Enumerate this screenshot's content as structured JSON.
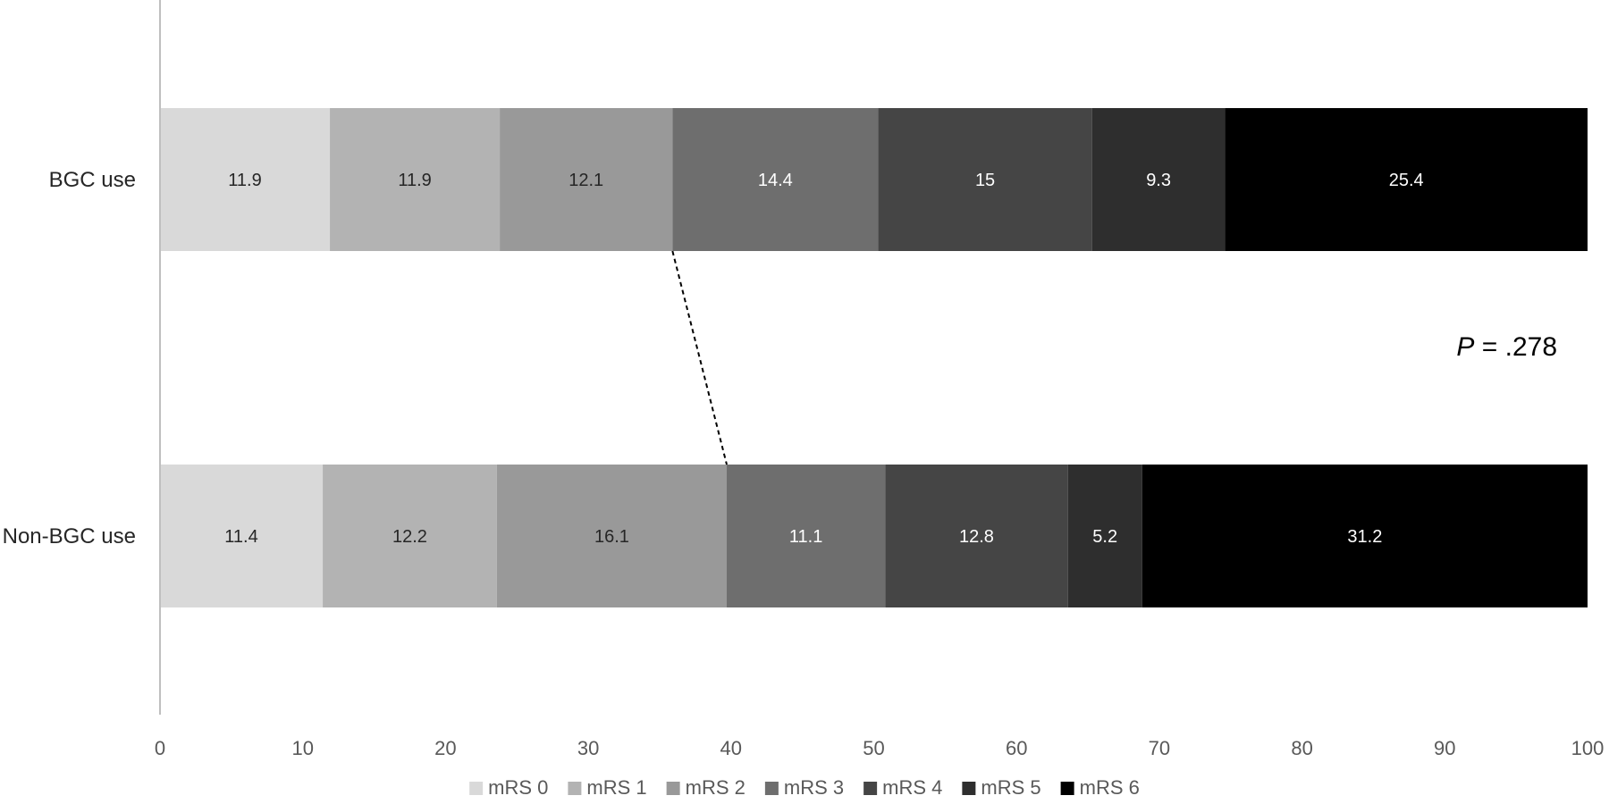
{
  "chart_data": {
    "type": "bar",
    "orientation": "horizontal",
    "stacked": true,
    "categories": [
      "BGC use",
      "Non-BGC use"
    ],
    "series": [
      {
        "name": "mRS 0",
        "values": [
          11.9,
          11.4
        ],
        "color": "#d9d9d9"
      },
      {
        "name": "mRS 1",
        "values": [
          11.9,
          12.2
        ],
        "color": "#b3b3b3"
      },
      {
        "name": "mRS 2",
        "values": [
          12.1,
          16.1
        ],
        "color": "#999999"
      },
      {
        "name": "mRS 3",
        "values": [
          14.4,
          11.1
        ],
        "color": "#6e6e6e"
      },
      {
        "name": "mRS 4",
        "values": [
          15,
          12.8
        ],
        "color": "#454545"
      },
      {
        "name": "mRS 5",
        "values": [
          9.3,
          5.2
        ],
        "color": "#2e2e2e"
      },
      {
        "name": "mRS 6",
        "values": [
          25.4,
          31.2
        ],
        "color": "#000000"
      }
    ],
    "xlim": [
      0,
      100
    ],
    "xticks": [
      "0",
      "10",
      "20",
      "30",
      "40",
      "50",
      "60",
      "70",
      "80",
      "90",
      "100"
    ],
    "grid": false,
    "legend_position": "bottom",
    "annotation": {
      "p_letter": "P",
      "p_rest": " = .278"
    },
    "connector": "dashed line from end of mRS 2 (BGC use) to end of mRS 2 (Non-BGC use)"
  }
}
